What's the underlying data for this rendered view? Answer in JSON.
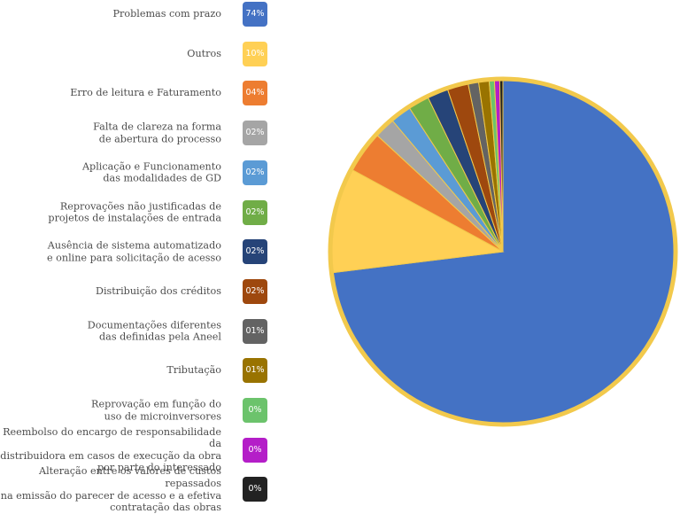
{
  "chart_data": {
    "type": "pie",
    "title": "",
    "legend_position": "left",
    "border_color": "#F2C94C",
    "slices": [
      {
        "label": "Problemas com prazo",
        "value": 74,
        "display": "74%",
        "color": "#4472C4"
      },
      {
        "label": "Outros",
        "value": 10,
        "display": "10%",
        "color": "#FFD055"
      },
      {
        "label": "Erro de leitura e Faturamento",
        "value": 4,
        "display": "04%",
        "color": "#ED7D31"
      },
      {
        "label": "Falta de clareza na forma\nde abertura do processo",
        "value": 2,
        "display": "02%",
        "color": "#A5A5A5"
      },
      {
        "label": "Aplicação e Funcionamento\ndas modalidades de GD",
        "value": 2,
        "display": "02%",
        "color": "#5B9BD5"
      },
      {
        "label": "Reprovações não justificadas de\nprojetos de instalações  de entrada",
        "value": 2,
        "display": "02%",
        "color": "#70AD47"
      },
      {
        "label": "Ausência de sistema automatizado\ne online para solicitação de acesso",
        "value": 2,
        "display": "02%",
        "color": "#264478"
      },
      {
        "label": "Distribuição dos créditos",
        "value": 2,
        "display": "02%",
        "color": "#9E480E"
      },
      {
        "label": "Documentações diferentes\ndas definidas pela Aneel",
        "value": 1,
        "display": "01%",
        "color": "#636363"
      },
      {
        "label": "Tributação",
        "value": 1,
        "display": "01%",
        "color": "#997300"
      },
      {
        "label": "Reprovação em função do\nuso de microinversores",
        "value": 0.5,
        "display": "0%",
        "color": "#6CC36C"
      },
      {
        "label": "Reembolso do encargo de responsabilidade da\ndistribuidora em casos de execução da obra\npor parte do interessado",
        "value": 0.5,
        "display": "0%",
        "color": "#B41EC8"
      },
      {
        "label": "Alteração entre os valores de custos repassados\nna emissão do parecer de acesso e a efetiva\ncontratação das obras",
        "value": 0.3,
        "display": "0%",
        "color": "#222222"
      }
    ]
  }
}
